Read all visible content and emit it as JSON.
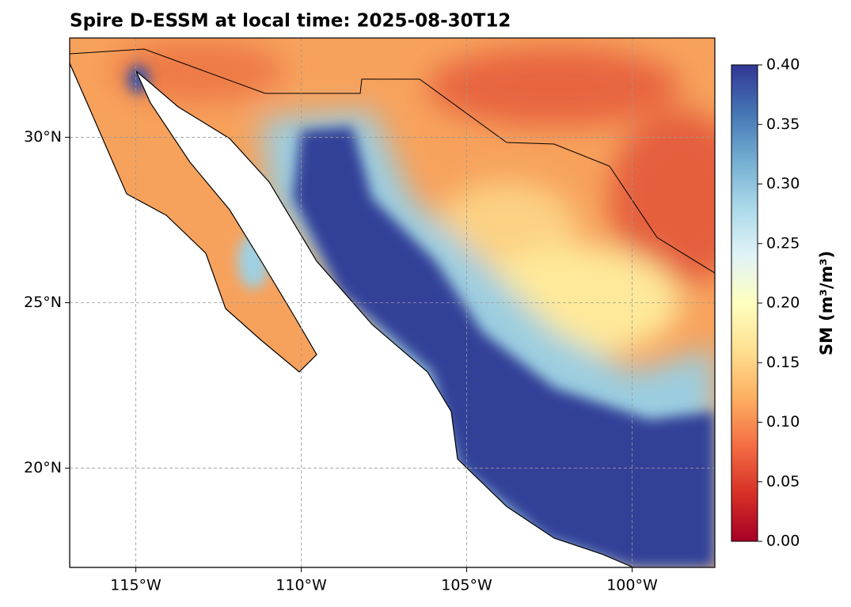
{
  "chart_data": {
    "type": "map",
    "title": "Spire D-ESSM at local time: 2025-08-30T12",
    "xlim": [
      -117,
      -97.5
    ],
    "ylim": [
      17,
      33
    ],
    "xticks": [
      {
        "value": -115,
        "label": "115°W"
      },
      {
        "value": -110,
        "label": "110°W"
      },
      {
        "value": -105,
        "label": "105°W"
      },
      {
        "value": -100,
        "label": "100°W"
      }
    ],
    "yticks": [
      {
        "value": 20,
        "label": "20°N"
      },
      {
        "value": 25,
        "label": "25°N"
      },
      {
        "value": 30,
        "label": "30°N"
      }
    ],
    "grid": true,
    "colorbar": {
      "label": "SM (m³/m³)",
      "lim": [
        0,
        0.4
      ],
      "colormap": "RdYlBu",
      "ticks": [
        {
          "value": 0,
          "label": "0.00"
        },
        0.05,
        {
          "value": 0.1,
          "label": "0.10"
        },
        0.15,
        {
          "value": 0.2,
          "label": "0.20"
        },
        0.25,
        {
          "value": 0.3,
          "label": "0.30"
        },
        0.35,
        {
          "value": 0.4,
          "label": "0.40"
        }
      ]
    }
  }
}
